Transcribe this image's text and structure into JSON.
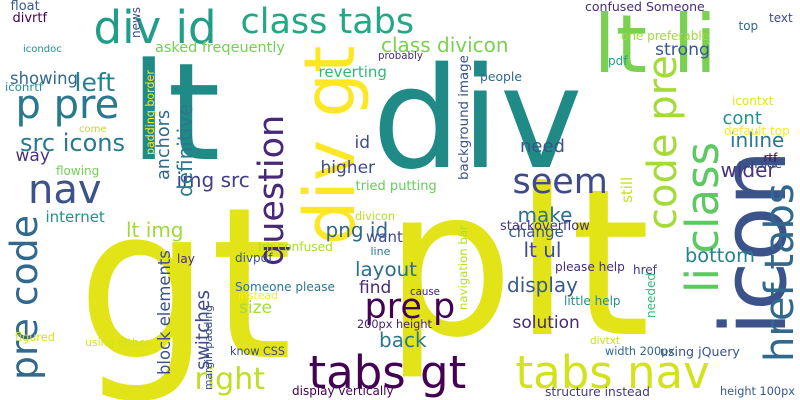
{
  "wordcloud": {
    "words": [
      {
        "text": "lt",
        "color": "#1f8a86",
        "rotated": false
      },
      {
        "text": "div",
        "color": "#1f8a86",
        "rotated": false
      },
      {
        "text": "gt",
        "color": "#e2e418",
        "rotated": false
      },
      {
        "text": "plt",
        "color": "#e2e418",
        "rotated": false
      },
      {
        "text": "lt li",
        "color": "#7ad151",
        "rotated": false
      },
      {
        "text": "div id",
        "color": "#1f9e89",
        "rotated": false
      },
      {
        "text": "class tabs",
        "color": "#22a884",
        "rotated": false
      },
      {
        "text": "div gt",
        "color": "#fde725",
        "rotated": true
      },
      {
        "text": "p pre",
        "color": "#2a788e",
        "rotated": false
      },
      {
        "text": "left",
        "color": "#26828e",
        "rotated": false
      },
      {
        "text": "nav",
        "color": "#3b528b",
        "rotated": false
      },
      {
        "text": "pre code",
        "color": "#31688e",
        "rotated": true
      },
      {
        "text": "src icons",
        "color": "#2a788e",
        "rotated": false
      },
      {
        "text": "tabs gt",
        "color": "#440154",
        "rotated": false
      },
      {
        "text": "tabs nav",
        "color": "#d2e21b",
        "rotated": false
      },
      {
        "text": "right",
        "color": "#bddf26",
        "rotated": false
      },
      {
        "text": "pre p",
        "color": "#440154",
        "rotated": false
      },
      {
        "text": "icon",
        "color": "#3b528b",
        "rotated": true
      },
      {
        "text": "li class",
        "color": "#5ec962",
        "rotated": true
      },
      {
        "text": "code pre",
        "color": "#a5db36",
        "rotated": true
      },
      {
        "text": "seem",
        "color": "#3e4a89",
        "rotated": false
      },
      {
        "text": "href tabs",
        "color": "#31688e",
        "rotated": true
      },
      {
        "text": "question",
        "color": "#482878",
        "rotated": true
      },
      {
        "text": "class divicon",
        "color": "#7ad151",
        "rotated": false
      },
      {
        "text": "strong",
        "color": "#38598c",
        "rotated": false
      },
      {
        "text": "confused Someone",
        "color": "#472d7b",
        "rotated": false
      },
      {
        "text": "asked freqeuently",
        "color": "#73d056",
        "rotated": false
      },
      {
        "text": "reverting",
        "color": "#35b779",
        "rotated": false
      },
      {
        "text": "background image",
        "color": "#3b528b",
        "rotated": true
      },
      {
        "text": "img src",
        "color": "#433e85",
        "rotated": false
      },
      {
        "text": "png id",
        "color": "#31688e",
        "rotated": false
      },
      {
        "text": "lt img",
        "color": "#9fda3a",
        "rotated": false
      },
      {
        "text": "higher",
        "color": "#3e4a89",
        "rotated": false
      },
      {
        "text": "definitive",
        "color": "#2a788e",
        "rotated": true
      },
      {
        "text": "anchors",
        "color": "#31688e",
        "rotated": true
      },
      {
        "text": "internet",
        "color": "#21918c",
        "rotated": false
      },
      {
        "text": "make",
        "color": "#2d708e",
        "rotated": false
      },
      {
        "text": "lt ul",
        "color": "#3e4a89",
        "rotated": false
      },
      {
        "text": "want",
        "color": "#3e4a89",
        "rotated": false
      },
      {
        "text": "change",
        "color": "#38598c",
        "rotated": false
      },
      {
        "text": "layout",
        "color": "#2d708e",
        "rotated": false
      },
      {
        "text": "find",
        "color": "#482878",
        "rotated": false
      },
      {
        "text": "display",
        "color": "#38598c",
        "rotated": false
      },
      {
        "text": "bottom",
        "color": "#26828e",
        "rotated": false
      },
      {
        "text": "back",
        "color": "#2a788e",
        "rotated": false
      },
      {
        "text": "solution",
        "color": "#482878",
        "rotated": false
      },
      {
        "text": "size",
        "color": "#a5db36",
        "rotated": false
      },
      {
        "text": "switches",
        "color": "#3e4a89",
        "rotated": true
      },
      {
        "text": "block elements",
        "color": "#3b528b",
        "rotated": true
      },
      {
        "text": "using jQuery",
        "color": "#3b528b",
        "rotated": false
      },
      {
        "text": "inline",
        "color": "#2a788e",
        "rotated": false
      },
      {
        "text": "cont",
        "color": "#21918c",
        "rotated": false
      },
      {
        "text": "wider",
        "color": "#46327e",
        "rotated": false
      },
      {
        "text": "need",
        "color": "#3b528b",
        "rotated": false
      },
      {
        "text": "showing",
        "color": "#31688e",
        "rotated": false
      },
      {
        "text": "way",
        "color": "#46327e",
        "rotated": false
      },
      {
        "text": "id",
        "color": "#3e4a89",
        "rotated": false
      },
      {
        "text": "navigation bar",
        "color": "#b5de2b",
        "rotated": true
      },
      {
        "text": "still",
        "color": "#c8e020",
        "rotated": true
      },
      {
        "text": "stackoverflow",
        "color": "#46327e",
        "rotated": false
      },
      {
        "text": "tried putting",
        "color": "#65cb5e",
        "rotated": false
      },
      {
        "text": "Im confused",
        "color": "#aadc32",
        "rotated": false
      },
      {
        "text": "Someone please",
        "color": "#2a788e",
        "rotated": false
      },
      {
        "text": "little help",
        "color": "#21918c",
        "rotated": false
      },
      {
        "text": "please help",
        "color": "#472d7b",
        "rotated": false
      },
      {
        "text": "200px height",
        "color": "#482475",
        "rotated": false
      },
      {
        "text": "width 200px",
        "color": "#31688e",
        "rotated": false
      },
      {
        "text": "display vertically",
        "color": "#440154",
        "rotated": false
      },
      {
        "text": "structure instead",
        "color": "#443983",
        "rotated": false
      },
      {
        "text": "know CSS",
        "color": "#3e4a89",
        "rotated": false
      },
      {
        "text": "height 100px",
        "color": "#38598c",
        "rotated": false
      },
      {
        "text": "divtxt",
        "color": "#c8e020",
        "rotated": false
      },
      {
        "text": "divpdf",
        "color": "#3b528b",
        "rotated": false
      },
      {
        "text": "divicon",
        "color": "#b5de2b",
        "rotated": false
      },
      {
        "text": "divrtf",
        "color": "#440154",
        "rotated": false
      },
      {
        "text": "float",
        "color": "#38598c",
        "rotated": false
      },
      {
        "text": "news",
        "color": "#3e4a89",
        "rotated": true
      },
      {
        "text": "probably",
        "color": "#472d7b",
        "rotated": false
      },
      {
        "text": "people",
        "color": "#31688e",
        "rotated": false
      },
      {
        "text": "text",
        "color": "#3e4a89",
        "rotated": false
      },
      {
        "text": "top",
        "color": "#31688e",
        "rotated": false
      },
      {
        "text": "pdf",
        "color": "#1f9e89",
        "rotated": false
      },
      {
        "text": "one preferable",
        "color": "#9fda3a",
        "rotated": false
      },
      {
        "text": "icondoc",
        "color": "#21918c",
        "rotated": false
      },
      {
        "text": "iconrtf",
        "color": "#21918c",
        "rotated": false
      },
      {
        "text": "icontxt",
        "color": "#e2e418",
        "rotated": false
      },
      {
        "text": "default top",
        "color": "#fde725",
        "rotated": false
      },
      {
        "text": "rtf",
        "color": "#440154",
        "rotated": false
      },
      {
        "text": "inside",
        "color": "#3b528b",
        "rotated": false
      },
      {
        "text": "come",
        "color": "#bddf26",
        "rotated": false
      },
      {
        "text": "padding border",
        "color": "#fde725",
        "rotated": true
      },
      {
        "text": "flowing",
        "color": "#73d056",
        "rotated": false
      },
      {
        "text": "href",
        "color": "#443983",
        "rotated": false
      },
      {
        "text": "line",
        "color": "#2a788e",
        "rotated": false
      },
      {
        "text": "cause",
        "color": "#482878",
        "rotated": false
      },
      {
        "text": "lay",
        "color": "#472d7b",
        "rotated": false
      },
      {
        "text": "needed",
        "color": "#35b779",
        "rotated": true
      },
      {
        "text": "instead",
        "color": "#fde725",
        "rotated": false
      },
      {
        "text": "figured",
        "color": "#d8e219",
        "rotated": false
      },
      {
        "text": "using either",
        "color": "#d2e21b",
        "rotated": false
      },
      {
        "text": "margin padding",
        "color": "#3b528b",
        "rotated": true
      }
    ]
  }
}
